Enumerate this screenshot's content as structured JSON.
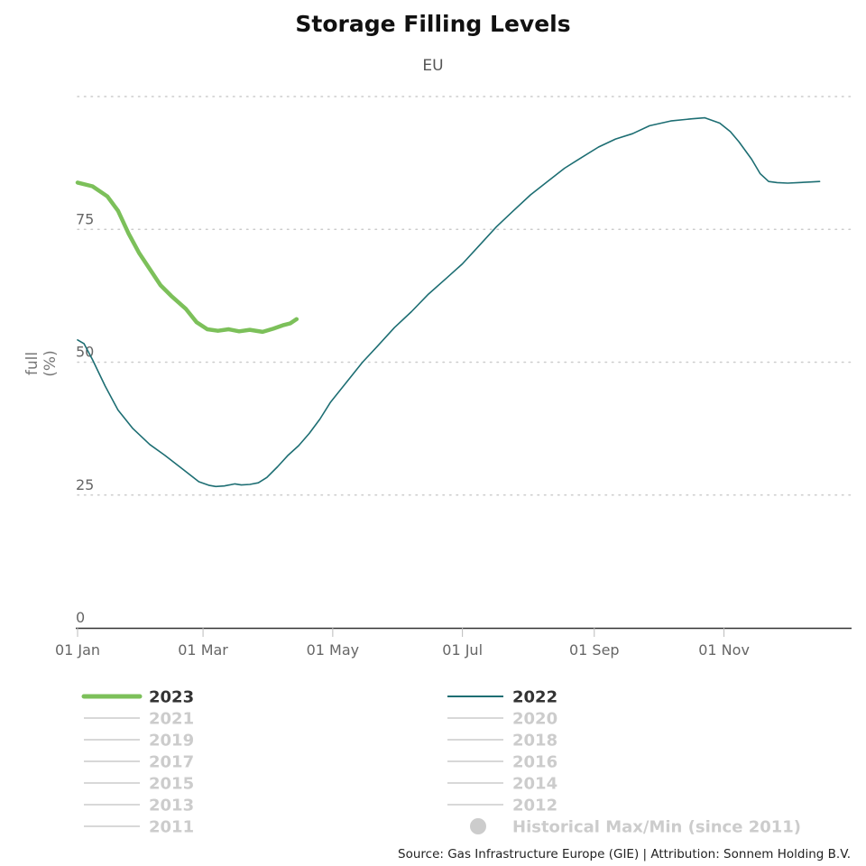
{
  "chart_data": {
    "type": "line",
    "title": "Storage Filling Levels",
    "subtitle": "EU",
    "ylabel": "full",
    "ylabel_unit": "(%)",
    "xlabel": "",
    "ylim": [
      0,
      100
    ],
    "xlim_days": [
      1,
      365
    ],
    "y_ticks": [
      {
        "value": 0,
        "label": "0"
      },
      {
        "value": 25,
        "label": "25"
      },
      {
        "value": 50,
        "label": "50"
      },
      {
        "value": 75,
        "label": "75"
      },
      {
        "value": 100,
        "label": ""
      }
    ],
    "x_ticks": [
      {
        "day": 1,
        "label": "01 Jan"
      },
      {
        "day": 60,
        "label": "01 Mar"
      },
      {
        "day": 121,
        "label": "01 May"
      },
      {
        "day": 182,
        "label": "01 Jul"
      },
      {
        "day": 244,
        "label": "01 Sep"
      },
      {
        "day": 305,
        "label": "01 Nov"
      }
    ],
    "grid": "horizontal-dotted",
    "series": [
      {
        "name": "2023",
        "color": "#7cc05a",
        "visible": true,
        "line": "thick",
        "points": [
          [
            1,
            83.8
          ],
          [
            8,
            83.1
          ],
          [
            15,
            81.2
          ],
          [
            20,
            78.5
          ],
          [
            25,
            74.2
          ],
          [
            30,
            70.5
          ],
          [
            35,
            67.5
          ],
          [
            40,
            64.5
          ],
          [
            45,
            62.5
          ],
          [
            52,
            60.0
          ],
          [
            57,
            57.5
          ],
          [
            62,
            56.2
          ],
          [
            67,
            55.9
          ],
          [
            72,
            56.2
          ],
          [
            77,
            55.8
          ],
          [
            82,
            56.1
          ],
          [
            88,
            55.7
          ],
          [
            93,
            56.3
          ],
          [
            98,
            57.0
          ],
          [
            101,
            57.3
          ],
          [
            104,
            58.1
          ]
        ]
      },
      {
        "name": "2022",
        "color": "#1d6e73",
        "visible": true,
        "line": "thin",
        "points": [
          [
            1,
            54.2
          ],
          [
            4,
            53.5
          ],
          [
            8,
            50.5
          ],
          [
            14,
            45.5
          ],
          [
            20,
            41.0
          ],
          [
            27,
            37.5
          ],
          [
            35,
            34.5
          ],
          [
            42,
            32.5
          ],
          [
            50,
            30.0
          ],
          [
            58,
            27.5
          ],
          [
            63,
            26.8
          ],
          [
            66,
            26.6
          ],
          [
            70,
            26.7
          ],
          [
            75,
            27.1
          ],
          [
            78,
            26.9
          ],
          [
            82,
            27.0
          ],
          [
            86,
            27.3
          ],
          [
            90,
            28.3
          ],
          [
            95,
            30.3
          ],
          [
            100,
            32.5
          ],
          [
            105,
            34.3
          ],
          [
            110,
            36.6
          ],
          [
            115,
            39.3
          ],
          [
            120,
            42.5
          ],
          [
            128,
            46.5
          ],
          [
            135,
            50.0
          ],
          [
            142,
            53.0
          ],
          [
            150,
            56.5
          ],
          [
            158,
            59.5
          ],
          [
            166,
            62.8
          ],
          [
            175,
            66.0
          ],
          [
            182,
            68.5
          ],
          [
            190,
            72.0
          ],
          [
            198,
            75.5
          ],
          [
            206,
            78.5
          ],
          [
            214,
            81.5
          ],
          [
            222,
            84.0
          ],
          [
            230,
            86.5
          ],
          [
            238,
            88.5
          ],
          [
            246,
            90.5
          ],
          [
            254,
            92.0
          ],
          [
            262,
            93.0
          ],
          [
            270,
            94.5
          ],
          [
            280,
            95.4
          ],
          [
            290,
            95.8
          ],
          [
            296,
            96.0
          ],
          [
            303,
            95.0
          ],
          [
            308,
            93.4
          ],
          [
            312,
            91.5
          ],
          [
            318,
            88.2
          ],
          [
            322,
            85.5
          ],
          [
            326,
            84.0
          ],
          [
            330,
            83.8
          ],
          [
            335,
            83.7
          ],
          [
            340,
            83.8
          ],
          [
            345,
            83.9
          ],
          [
            350,
            84.0
          ]
        ]
      }
    ],
    "legend": {
      "placement": "bottom",
      "left_column": [
        {
          "label": "2023",
          "active": true,
          "color": "#7cc05a",
          "style": "thick"
        },
        {
          "label": "2021",
          "active": false,
          "color": "#cccccc",
          "style": "thin"
        },
        {
          "label": "2019",
          "active": false,
          "color": "#cccccc",
          "style": "thin"
        },
        {
          "label": "2017",
          "active": false,
          "color": "#cccccc",
          "style": "thin"
        },
        {
          "label": "2015",
          "active": false,
          "color": "#cccccc",
          "style": "thin"
        },
        {
          "label": "2013",
          "active": false,
          "color": "#cccccc",
          "style": "thin"
        },
        {
          "label": "2011",
          "active": false,
          "color": "#cccccc",
          "style": "thin"
        }
      ],
      "right_column": [
        {
          "label": "2022",
          "active": true,
          "color": "#1d6e73",
          "style": "thin"
        },
        {
          "label": "2020",
          "active": false,
          "color": "#cccccc",
          "style": "thin"
        },
        {
          "label": "2018",
          "active": false,
          "color": "#cccccc",
          "style": "thin"
        },
        {
          "label": "2016",
          "active": false,
          "color": "#cccccc",
          "style": "thin"
        },
        {
          "label": "2014",
          "active": false,
          "color": "#cccccc",
          "style": "thin"
        },
        {
          "label": "2012",
          "active": false,
          "color": "#cccccc",
          "style": "thin"
        },
        {
          "label": "Historical Max/Min (since 2011)",
          "active": false,
          "color": "#cccccc",
          "style": "dot"
        }
      ]
    },
    "credits": "Source: Gas Infrastructure Europe (GIE) | Attribution: Sonnem Holding B.V."
  },
  "colors": {
    "active_text": "#333333",
    "inactive_text": "#cccccc",
    "grid": "#cccccc",
    "axis": "#333333"
  }
}
